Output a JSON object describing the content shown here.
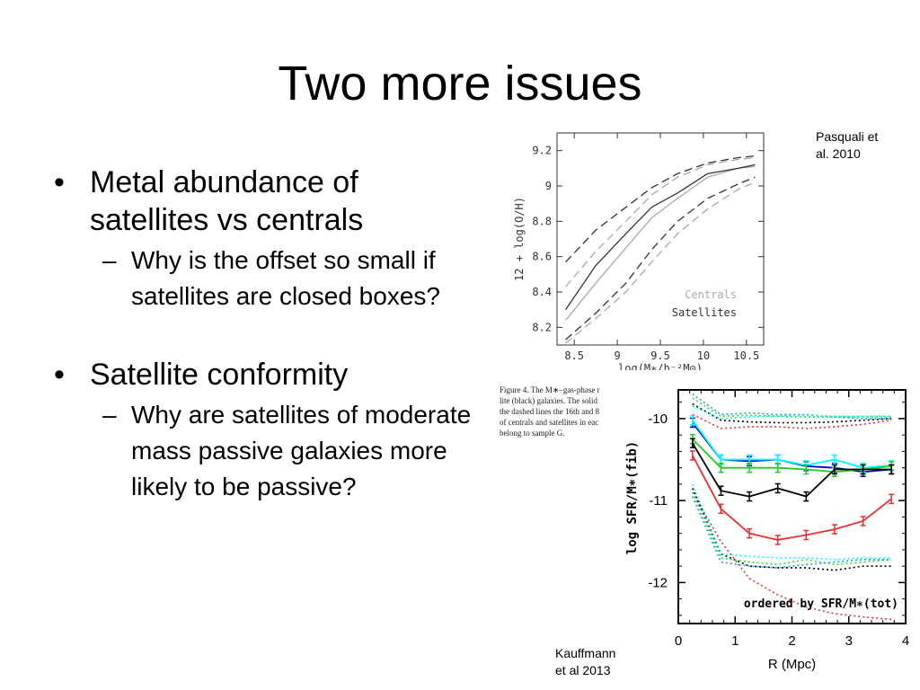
{
  "slide": {
    "title": "Two more issues",
    "bullets": [
      {
        "text": "Metal abundance of satellites vs centrals",
        "sub": "Why is the offset so small if satellites are closed boxes?"
      },
      {
        "text": "Satellite conformity",
        "sub": "Why are satellites of moderate mass passive galaxies more likely to be passive?"
      }
    ],
    "bullet_glyph": "•",
    "dash_glyph": "–",
    "citation_top": [
      "Pasquali et",
      "al. 2010"
    ],
    "citation_bottom": [
      "Kauffmann",
      "et al 2013"
    ],
    "caption_lines": [
      "Figure 4.  The M∗–gas-phase r",
      "lite (black) galaxies. The solid",
      "the dashed lines the 16th and 8",
      "of centrals and satellites in eac",
      "belong to sample G."
    ]
  },
  "chart_data": [
    {
      "type": "line",
      "xlabel": "log(M∗/h⁻²M⊙)",
      "ylabel": "12 + log(O/H)",
      "xlim": [
        8.3,
        10.7
      ],
      "ylim": [
        8.1,
        9.3
      ],
      "x_ticks": [
        "8.5",
        "9",
        "9.5",
        "10",
        "10.5"
      ],
      "y_ticks": [
        "8.2",
        "8.4",
        "8.6",
        "8.8",
        "9",
        "9.2"
      ],
      "legend": [
        "Centrals",
        "Satellites"
      ],
      "legend_position": "bottom-right",
      "x": [
        8.4,
        8.75,
        9.1,
        9.4,
        9.7,
        10.05,
        10.4,
        10.6
      ],
      "series": [
        {
          "name": "Centrals",
          "color": "#aaaaaa",
          "style": "solid",
          "values": [
            8.24,
            8.45,
            8.65,
            8.82,
            8.93,
            9.05,
            9.1,
            9.11
          ]
        },
        {
          "name": "Satellites",
          "color": "#333333",
          "style": "solid",
          "values": [
            8.3,
            8.55,
            8.73,
            8.88,
            8.96,
            9.07,
            9.1,
            9.12
          ]
        },
        {
          "color": "#aaaaaa",
          "style": "dashed",
          "values": [
            8.43,
            8.63,
            8.8,
            8.95,
            9.05,
            9.12,
            9.15,
            9.16
          ]
        },
        {
          "color": "#aaaaaa",
          "style": "dashed",
          "values": [
            8.11,
            8.25,
            8.4,
            8.57,
            8.73,
            8.87,
            8.98,
            9.02
          ]
        },
        {
          "color": "#333333",
          "style": "dashed",
          "values": [
            8.57,
            8.75,
            8.88,
            8.99,
            9.07,
            9.13,
            9.16,
            9.17
          ]
        },
        {
          "color": "#333333",
          "style": "dashed",
          "values": [
            8.13,
            8.28,
            8.45,
            8.64,
            8.8,
            8.93,
            9.01,
            9.05
          ]
        }
      ]
    },
    {
      "type": "line",
      "xlabel": "R (Mpc)",
      "ylabel": "log SFR/M∗(fib)",
      "annotation": "ordered by SFR/M∗(tot)",
      "xlim": [
        0,
        4
      ],
      "ylim": [
        -12.5,
        -9.65
      ],
      "x_ticks": [
        "0",
        "1",
        "2",
        "3",
        "4"
      ],
      "y_ticks": [
        "-10",
        "-11",
        "-12"
      ],
      "x": [
        0.25,
        0.75,
        1.25,
        1.75,
        2.25,
        2.75,
        3.25,
        3.75
      ],
      "series": [
        {
          "color": "#1a9ee6",
          "style": "dotted",
          "values": [
            -9.7,
            -9.95,
            -9.93,
            -9.95,
            -9.95,
            -9.98,
            -10.0,
            -10.0
          ]
        },
        {
          "color": "#33dd33",
          "style": "dotted",
          "values": [
            -9.75,
            -9.97,
            -9.96,
            -9.97,
            -9.98,
            -9.98,
            -9.98,
            -9.98
          ]
        },
        {
          "color": "#000000",
          "style": "dotted",
          "values": [
            -9.82,
            -10.02,
            -10.04,
            -10.05,
            -10.05,
            -10.04,
            -10.02,
            -10.0
          ]
        },
        {
          "color": "#00ffff",
          "style": "dotted",
          "values": [
            -9.85,
            -10.0,
            -9.98,
            -9.97,
            -9.96,
            -9.97,
            -9.97,
            -9.97
          ]
        },
        {
          "color": "#e83030",
          "style": "dotted",
          "values": [
            -9.95,
            -10.12,
            -10.1,
            -10.1,
            -10.12,
            -10.1,
            -10.07,
            -10.02
          ]
        },
        {
          "color": "#0000cc",
          "style": "solid",
          "values": [
            -10.05,
            -10.5,
            -10.52,
            -10.5,
            -10.58,
            -10.6,
            -10.65,
            -10.62
          ]
        },
        {
          "color": "#00ffff",
          "style": "solid",
          "values": [
            -10.02,
            -10.5,
            -10.5,
            -10.5,
            -10.57,
            -10.5,
            -10.6,
            -10.57
          ]
        },
        {
          "color": "#22cc22",
          "style": "solid",
          "values": [
            -10.25,
            -10.6,
            -10.6,
            -10.6,
            -10.62,
            -10.65,
            -10.62,
            -10.58
          ]
        },
        {
          "color": "#000000",
          "style": "solid",
          "values": [
            -10.3,
            -10.88,
            -10.95,
            -10.85,
            -10.95,
            -10.62,
            -10.62,
            -10.62
          ]
        },
        {
          "color": "#e83030",
          "style": "solid",
          "values": [
            -10.45,
            -11.1,
            -11.4,
            -11.48,
            -11.42,
            -11.35,
            -11.25,
            -10.98
          ]
        },
        {
          "color": "#e83030",
          "style": "dotted",
          "values": [
            -10.9,
            -11.5,
            -11.95,
            -12.15,
            -12.3,
            -12.38,
            -12.42,
            -12.45
          ]
        },
        {
          "color": "#000000",
          "style": "dotted",
          "values": [
            -10.85,
            -11.65,
            -11.8,
            -11.82,
            -11.82,
            -11.85,
            -11.8,
            -11.8
          ]
        },
        {
          "color": "#33dd33",
          "style": "dotted",
          "values": [
            -10.9,
            -11.7,
            -11.75,
            -11.78,
            -11.72,
            -11.78,
            -11.75,
            -11.72
          ]
        },
        {
          "color": "#00ffff",
          "style": "dotted",
          "values": [
            -10.8,
            -11.65,
            -11.68,
            -11.7,
            -11.7,
            -11.72,
            -11.7,
            -11.7
          ]
        },
        {
          "color": "#1a9ee6",
          "style": "dotted",
          "values": [
            -10.95,
            -11.75,
            -11.8,
            -11.82,
            -11.78,
            -11.75,
            -11.72,
            -11.72
          ]
        }
      ]
    }
  ]
}
